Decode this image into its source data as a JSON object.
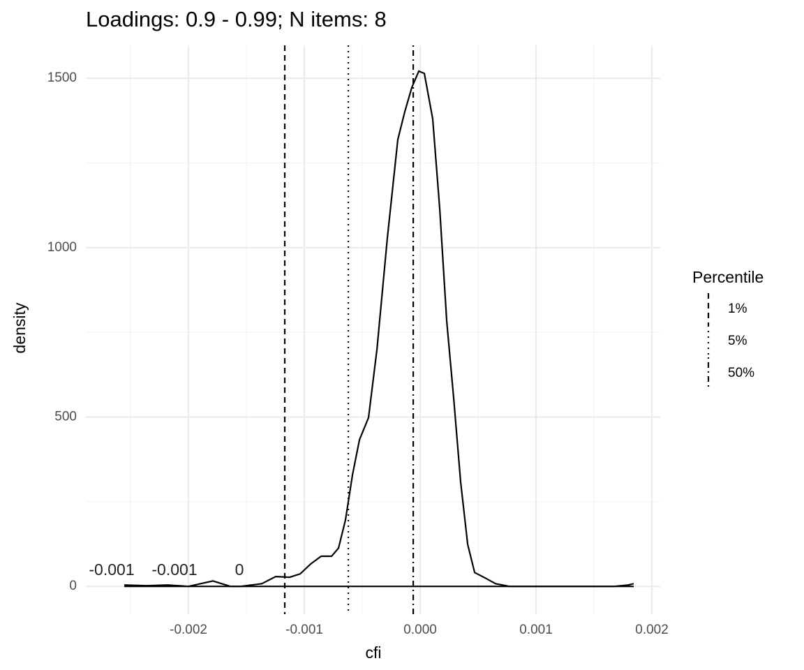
{
  "chart_data": {
    "type": "density",
    "title": "Loadings: 0.9 - 0.99; N items: 8",
    "x_label": "cfi",
    "y_label": "density",
    "x": [
      -0.002554,
      -0.002361,
      -0.002181,
      -0.002,
      -0.001789,
      -0.001639,
      -0.001548,
      -0.001367,
      -0.001247,
      -0.001127,
      -0.001036,
      -0.000946,
      -0.000855,
      -0.000765,
      -0.000705,
      -0.000645,
      -0.000584,
      -0.000524,
      -0.000446,
      -0.000373,
      -0.000283,
      -0.000193,
      -0.000133,
      -7.2e-05,
      -1.2e-05,
      3.6e-05,
      0.000108,
      0.000169,
      0.000229,
      0.000289,
      0.000349,
      0.00041,
      0.00047,
      0.00056,
      0.000651,
      0.000771,
      0.001193,
      0.001675,
      0.001795,
      0.001843
    ],
    "values": [
      4,
      2,
      4,
      0,
      16,
      0,
      0,
      8,
      29,
      27,
      37,
      66,
      89,
      89,
      113,
      196,
      330,
      433,
      498,
      700,
      1030,
      1319,
      1401,
      1473,
      1521,
      1514,
      1380,
      1113,
      783,
      556,
      309,
      124,
      41,
      25,
      8,
      0,
      0,
      0,
      4,
      8
    ],
    "color": "#000000",
    "xlim": [
      -0.002886,
      0.002072
    ],
    "ylim": [
      -82,
      1597
    ],
    "xticks": [
      -0.002,
      -0.001,
      {
        "value": 0,
        "label": "0.000"
      },
      0.001,
      0.002
    ],
    "yticks": [
      0,
      500,
      1000,
      1500
    ],
    "x_minor_ticks": [
      -0.0025,
      -0.0015,
      -0.0005,
      0.0005,
      0.0015
    ],
    "y_minor_ticks": [
      250,
      750,
      1250
    ],
    "grid": true,
    "legend_title": "Percentile",
    "legend_position": "right",
    "percentile_lines": [
      {
        "name": "1%",
        "value": -0.001169,
        "dash": "dashed"
      },
      {
        "name": "5%",
        "value": -0.00062,
        "dash": "dotted"
      },
      {
        "name": "50%",
        "value": -6e-05,
        "dash": "dotdash"
      }
    ],
    "annotations": [
      "-0.001",
      "-0.001",
      "0"
    ]
  }
}
